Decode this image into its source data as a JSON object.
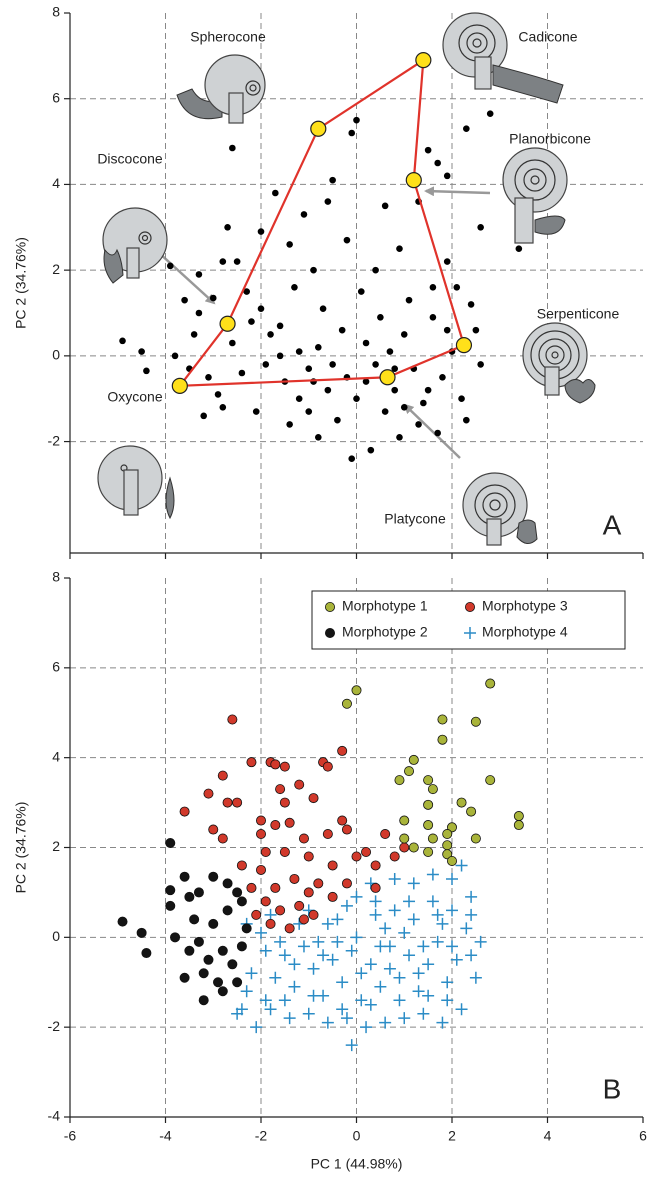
{
  "chart_data": [
    {
      "type": "scatter",
      "panel_label": "A",
      "y_label": "PC 2 (34.76%)",
      "xlim": [
        -6,
        6
      ],
      "xticks": [
        -6,
        -4,
        -2,
        0,
        2,
        4,
        6
      ],
      "ylim": [
        -4.6,
        8
      ],
      "yticks": [
        -2,
        0,
        2,
        4,
        6,
        8
      ],
      "grid": true,
      "series": [
        {
          "color": "#000000",
          "marker": "o",
          "x": [
            -4.9,
            -4.5,
            -4.4,
            -3.9,
            -3.6,
            -3.3,
            -3.0,
            -3.8,
            -3.5,
            -3.1,
            -2.8,
            -3.2,
            -2.6,
            -2.7,
            -2.5,
            -2.3,
            -2.0,
            -1.8,
            -1.6,
            -1.5,
            -1.2,
            -1.0,
            -0.8,
            -0.6,
            -0.4,
            -0.2,
            0.0,
            0.2,
            0.4,
            0.6,
            0.8,
            1.0,
            1.2,
            1.4,
            1.6,
            1.8,
            2.0,
            2.2,
            2.4,
            2.6,
            -1.7,
            -1.4,
            -1.1,
            -0.9,
            -0.5,
            -0.2,
            0.0,
            -0.1,
            0.6,
            0.9,
            1.5,
            1.7,
            2.3,
            2.8,
            2.6,
            3.4,
            3.4,
            1.9,
            1.6,
            -2.2,
            -1.9,
            -2.1,
            -1.3,
            -0.7,
            0.1,
            0.5,
            1.1,
            1.9,
            2.3,
            1.7,
            0.3,
            -0.1,
            -0.8,
            -1.4,
            -2.4,
            -0.3,
            0.7,
            1.3,
            2.1,
            -1.0,
            0.9,
            -0.5,
            0.2,
            1.5,
            -1.6,
            -2.6,
            -3.4,
            -2.9,
            -2.8,
            -3.3,
            0.4,
            1.3,
            -2.0,
            1.9,
            -0.6,
            0.8,
            1.0,
            -0.9,
            2.5,
            -1.2
          ],
          "y": [
            0.35,
            0.1,
            -0.35,
            2.1,
            1.3,
            1.0,
            1.35,
            0.0,
            -0.3,
            -0.5,
            -1.2,
            -1.4,
            4.85,
            3.0,
            2.2,
            1.5,
            1.1,
            0.5,
            0.0,
            -0.6,
            -1.0,
            -0.3,
            0.2,
            -0.8,
            -1.5,
            -0.5,
            -1.0,
            0.3,
            -0.2,
            -1.3,
            -0.8,
            0.5,
            -0.3,
            -1.1,
            0.9,
            -0.5,
            0.1,
            -1.0,
            1.2,
            -0.2,
            3.8,
            2.6,
            3.3,
            2.0,
            4.1,
            2.7,
            5.5,
            5.2,
            3.5,
            2.5,
            4.8,
            4.5,
            5.3,
            5.65,
            3.0,
            2.7,
            2.5,
            2.2,
            1.6,
            0.8,
            -0.2,
            -1.3,
            1.6,
            1.1,
            1.5,
            0.9,
            1.3,
            0.6,
            -1.5,
            -1.8,
            -2.2,
            -2.4,
            -1.9,
            -1.6,
            -0.4,
            0.6,
            0.1,
            -1.6,
            1.6,
            -1.3,
            -1.9,
            -0.2,
            -0.6,
            -0.8,
            0.7,
            0.3,
            0.5,
            -0.9,
            2.2,
            1.9,
            2.0,
            3.6,
            2.9,
            4.2,
            3.6,
            -0.3,
            -1.2,
            -0.6,
            0.6,
            0.1
          ]
        }
      ],
      "hull": {
        "color": "#e0332b",
        "marker_color": "#ffe01a",
        "x": [
          -3.7,
          -2.7,
          -0.8,
          1.4,
          1.2,
          2.25,
          0.65
        ],
        "y": [
          -0.7,
          0.75,
          5.3,
          6.9,
          4.1,
          0.25,
          -0.5
        ],
        "labels": [
          "Oxycone",
          "Discocone",
          "Spherocone",
          "Cadicone",
          "Planorbicone",
          "Serpenticone",
          "Platycone"
        ]
      }
    },
    {
      "type": "scatter",
      "panel_label": "B",
      "y_label": "PC 2 (34.76%)",
      "x_label": "PC 1 (44.98%)",
      "xlim": [
        -6,
        6
      ],
      "xticks": [
        -6,
        -4,
        -2,
        0,
        2,
        4,
        6
      ],
      "ylim": [
        -4,
        8
      ],
      "yticks": [
        -4,
        -2,
        0,
        2,
        4,
        6,
        8
      ],
      "grid": true,
      "legend": "upper right",
      "series": [
        {
          "name": "Morphotype 1",
          "color": "#a9b43a",
          "marker": "o",
          "x": [
            0.0,
            -0.2,
            2.8,
            1.8,
            2.5,
            1.8,
            1.2,
            1.1,
            0.9,
            1.5,
            2.8,
            1.6,
            2.2,
            2.4,
            1.5,
            1.0,
            1.5,
            3.4,
            3.4,
            2.0,
            1.9,
            1.6,
            2.5,
            1.0,
            1.9,
            1.5,
            1.9,
            2.0,
            1.2
          ],
          "y": [
            5.5,
            5.2,
            5.65,
            4.85,
            4.8,
            4.4,
            3.95,
            3.7,
            3.5,
            3.5,
            3.5,
            3.3,
            3.0,
            2.8,
            2.95,
            2.6,
            2.5,
            2.7,
            2.5,
            2.45,
            2.3,
            2.2,
            2.2,
            2.2,
            2.05,
            1.9,
            1.85,
            1.7,
            2.0
          ]
        },
        {
          "name": "Morphotype 2",
          "color": "#141414",
          "marker": "o",
          "x": [
            -4.9,
            -4.5,
            -4.4,
            -3.9,
            -3.9,
            -3.9,
            -3.6,
            -3.5,
            -3.3,
            -3.0,
            -2.7,
            -2.5,
            -2.4,
            -3.8,
            -3.5,
            -3.3,
            -3.1,
            -2.8,
            -2.6,
            -2.4,
            -2.3,
            -3.0,
            -3.2,
            -2.9,
            -2.8,
            -3.2,
            -3.6,
            -2.5,
            -2.7,
            -3.4
          ],
          "y": [
            0.35,
            0.1,
            -0.35,
            2.1,
            1.05,
            0.7,
            1.35,
            0.9,
            1.0,
            1.35,
            1.2,
            1.0,
            0.8,
            0.0,
            -0.3,
            -0.1,
            -0.5,
            -0.3,
            -0.6,
            -0.2,
            0.2,
            0.3,
            -0.8,
            -1.0,
            -1.2,
            -1.4,
            -0.9,
            -1.0,
            0.6,
            0.4
          ]
        },
        {
          "name": "Morphotype 3",
          "color": "#d1392b",
          "marker": "o",
          "x": [
            -2.6,
            -2.2,
            -1.8,
            -1.7,
            -1.5,
            -0.7,
            -0.6,
            -0.3,
            -2.8,
            -3.1,
            -2.7,
            -2.5,
            -1.6,
            -1.2,
            -0.9,
            -3.6,
            -3.0,
            -2.8,
            -2.0,
            -1.7,
            -1.4,
            -1.1,
            -0.6,
            -0.3,
            -0.2,
            0.6,
            -1.9,
            -1.5,
            -1.0,
            -0.5,
            0.0,
            0.2,
            0.4,
            0.8,
            1.0,
            -2.4,
            -2.0,
            -1.7,
            -1.3,
            -1.0,
            -0.8,
            -0.5,
            -0.2,
            0.4,
            -2.2,
            -1.9,
            -1.6,
            -1.2,
            -0.9,
            -2.1,
            -1.8,
            -1.4,
            -1.1,
            -2.0,
            -1.5
          ],
          "y": [
            4.85,
            3.9,
            3.9,
            3.85,
            3.8,
            3.9,
            3.8,
            4.15,
            3.6,
            3.2,
            3.0,
            3.0,
            3.3,
            3.4,
            3.1,
            2.8,
            2.4,
            2.2,
            2.6,
            2.5,
            2.55,
            2.2,
            2.3,
            2.6,
            2.4,
            2.3,
            1.9,
            1.9,
            1.8,
            1.6,
            1.8,
            1.9,
            1.6,
            1.8,
            2.0,
            1.6,
            1.5,
            1.1,
            1.3,
            1.0,
            1.2,
            0.9,
            1.2,
            1.1,
            1.1,
            0.8,
            0.6,
            0.7,
            0.5,
            0.5,
            0.3,
            0.2,
            0.4,
            2.3,
            3.0
          ]
        },
        {
          "name": "Morphotype 4",
          "color": "#2b8cc6",
          "marker": "+",
          "x": [
            -2.2,
            -2.3,
            -2.4,
            -2.1,
            -1.9,
            -1.7,
            -1.5,
            -1.3,
            -1.1,
            -0.9,
            -0.7,
            -0.5,
            -0.3,
            -0.1,
            0.1,
            0.3,
            0.5,
            0.7,
            0.9,
            1.1,
            1.3,
            1.5,
            1.7,
            1.9,
            2.1,
            2.3,
            2.4,
            2.2,
            1.8,
            1.4,
            1.0,
            0.6,
            0.2,
            -0.2,
            -0.6,
            -1.0,
            -1.4,
            -1.8,
            -0.1,
            -2.3,
            -2.0,
            -1.6,
            -1.2,
            -0.8,
            -0.4,
            0.0,
            0.4,
            0.8,
            1.2,
            1.6,
            2.0,
            2.4,
            2.0,
            2.2,
            1.6,
            1.2,
            0.8,
            0.4,
            0.0,
            -0.4,
            -0.2,
            0.6,
            1.0,
            1.4,
            1.8,
            2.6,
            2.5,
            1.9,
            1.5,
            0.9,
            0.3,
            -0.3,
            -0.9,
            -1.5,
            -2.5,
            -1.9,
            -1.3,
            -0.7,
            0.1,
            0.7,
            1.3,
            2.0,
            2.4,
            -1.0,
            -1.8,
            0.5,
            1.1,
            1.7,
            0.3,
            -0.6
          ],
          "y": [
            -0.8,
            -1.2,
            -1.6,
            -2.0,
            -1.4,
            -0.9,
            -0.4,
            -1.1,
            -0.2,
            -0.7,
            -1.3,
            -0.5,
            -1.0,
            -0.3,
            -1.4,
            -0.6,
            -1.1,
            -0.2,
            -0.9,
            -0.4,
            -1.2,
            -0.6,
            -0.1,
            -1.0,
            -0.5,
            0.2,
            -0.4,
            -1.6,
            -1.9,
            -1.7,
            -1.8,
            -1.9,
            -2.0,
            -1.8,
            -1.9,
            -1.7,
            -1.8,
            -1.6,
            -2.4,
            0.3,
            0.1,
            -0.1,
            0.3,
            -0.1,
            0.4,
            0.0,
            0.5,
            0.6,
            0.4,
            0.8,
            0.6,
            0.9,
            1.3,
            1.6,
            1.4,
            1.2,
            1.3,
            0.8,
            0.9,
            -0.1,
            0.7,
            0.2,
            0.1,
            -0.2,
            0.3,
            -0.1,
            -0.9,
            -1.4,
            -1.3,
            -1.4,
            -1.5,
            -1.6,
            -1.3,
            -1.4,
            -1.7,
            -0.3,
            -0.6,
            -0.4,
            -0.8,
            -0.7,
            -0.8,
            -0.2,
            0.5,
            0.6,
            0.5,
            -0.2,
            0.8,
            0.5,
            1.2,
            0.3
          ]
        }
      ]
    }
  ]
}
